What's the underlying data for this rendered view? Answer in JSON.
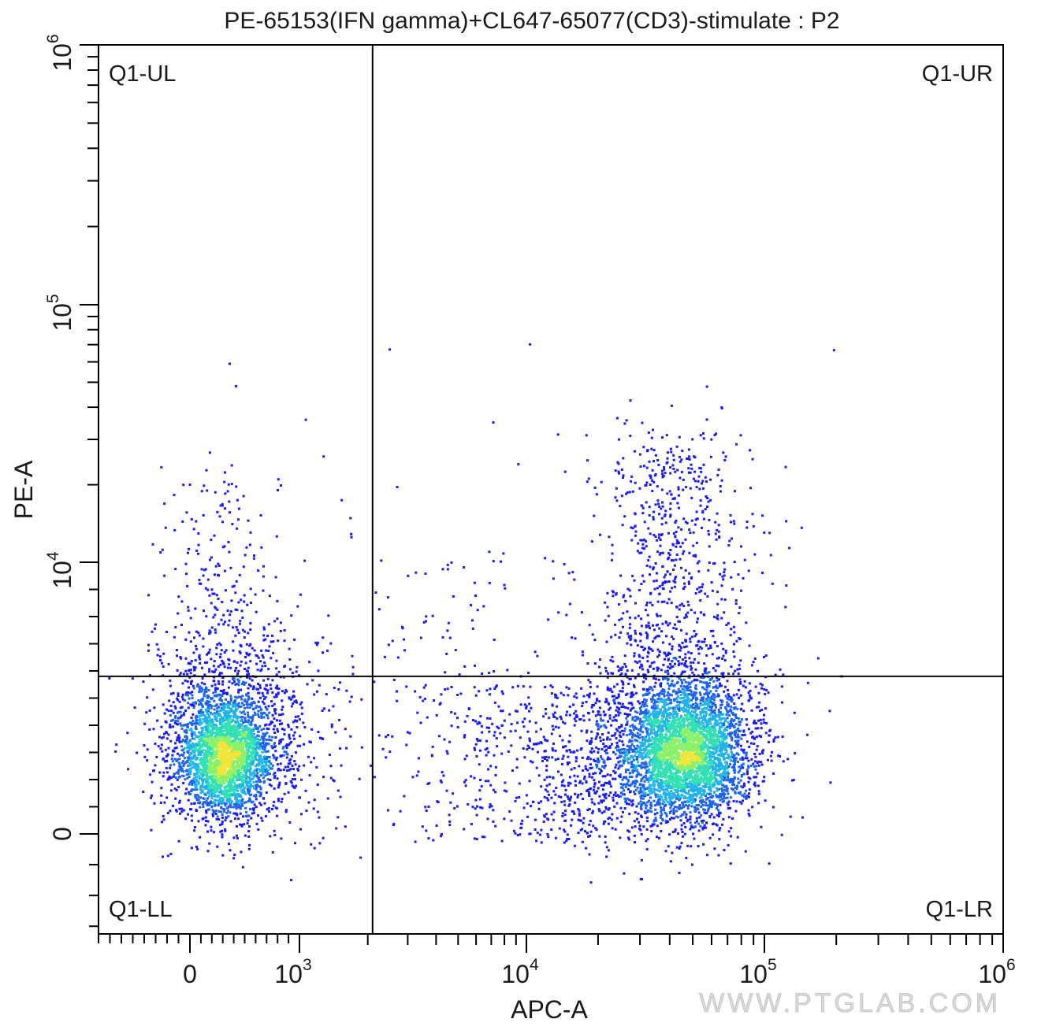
{
  "chart_data": {
    "type": "scatter",
    "subtype": "flow-cytometry-density-dot-plot",
    "title": "PE-65153(IFN gamma)+CL647-65077(CD3)-stimulate : P2",
    "xlabel": "APC-A",
    "ylabel": "PE-A",
    "x_scale": "biexponential",
    "y_scale": "biexponential",
    "xlim": [
      -800,
      1000000
    ],
    "ylim": [
      -1300,
      1000000
    ],
    "x_ticks": [
      {
        "value": 0,
        "base": "0",
        "exp": ""
      },
      {
        "value": 1000,
        "base": "10",
        "exp": "3"
      },
      {
        "value": 10000,
        "base": "10",
        "exp": "4"
      },
      {
        "value": 100000,
        "base": "10",
        "exp": "5"
      },
      {
        "value": 1000000,
        "base": "10",
        "exp": "6"
      }
    ],
    "y_ticks": [
      {
        "value": 0,
        "base": "0",
        "exp": ""
      },
      {
        "value": 10000,
        "base": "10",
        "exp": "4"
      },
      {
        "value": 100000,
        "base": "10",
        "exp": "5"
      },
      {
        "value": 1000000,
        "base": "10",
        "exp": "6"
      }
    ],
    "gates": {
      "x_threshold": 2100,
      "y_threshold": 5800
    },
    "quadrants": [
      {
        "name": "Q1-UL",
        "position": "top-left"
      },
      {
        "name": "Q1-UR",
        "position": "top-right"
      },
      {
        "name": "Q1-LL",
        "position": "bottom-left"
      },
      {
        "name": "Q1-LR",
        "position": "bottom-right"
      }
    ],
    "populations": [
      {
        "center_x": 280,
        "center_y": 2800,
        "description": "CD3- events, dense core near x=280, y=2800"
      },
      {
        "center_x": 45000,
        "center_y": 3000,
        "description": "CD3+ events, dense core near x=45000, y=3000, with IFN gamma+ tail up to y~20000"
      }
    ],
    "color_scale": [
      "#1b1bf5",
      "#1e62f0",
      "#22b3e8",
      "#32e0b4",
      "#8cf06a",
      "#f0e63a"
    ],
    "grid": false,
    "legend": "none"
  },
  "watermark": "WWW.PTGLAB.COM"
}
